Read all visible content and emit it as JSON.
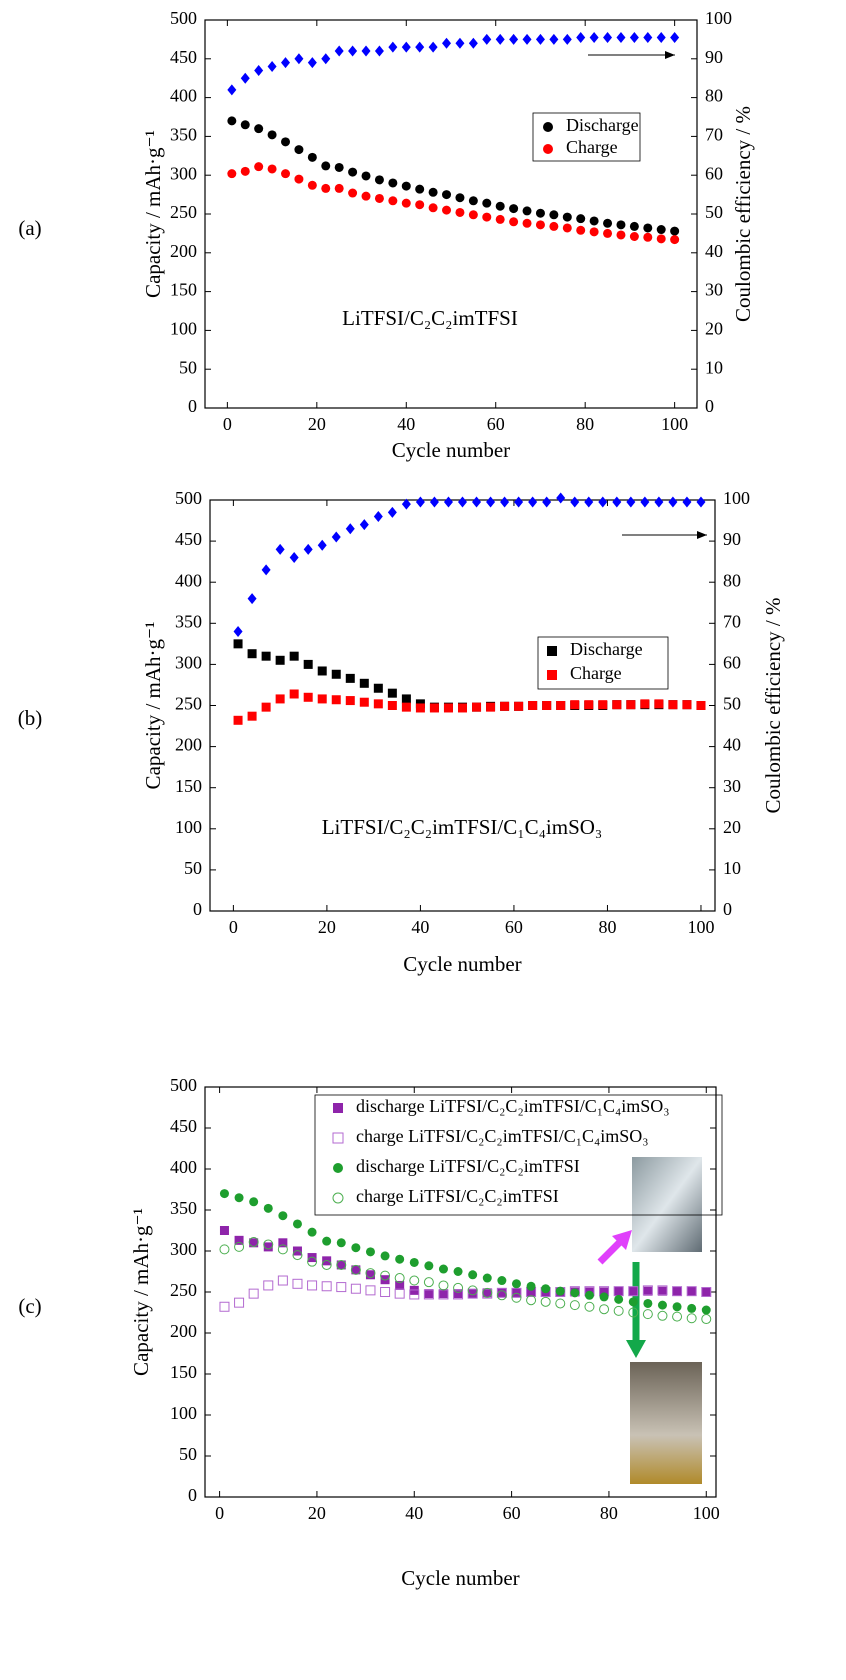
{
  "chart_data": [
    {
      "type": "scatter",
      "panel": "(a)",
      "annotation": "LiTFSI/C₂C₂imTFSI",
      "xlabel": "Cycle number",
      "ylabel": "Capacity / mAh·g⁻¹",
      "y2label": "Coulombic efficiency / %",
      "xlim": [
        -5,
        105
      ],
      "ylim": [
        0,
        500
      ],
      "y2lim": [
        0,
        100
      ],
      "xticks": [
        0,
        20,
        40,
        60,
        80,
        100
      ],
      "yticks": [
        0,
        50,
        100,
        150,
        200,
        250,
        300,
        350,
        400,
        450,
        500
      ],
      "y2ticks": [
        0,
        10,
        20,
        30,
        40,
        50,
        60,
        70,
        80,
        90,
        100
      ],
      "x": [
        1,
        4,
        7,
        10,
        13,
        16,
        19,
        22,
        25,
        28,
        31,
        34,
        37,
        40,
        43,
        46,
        49,
        52,
        55,
        58,
        61,
        64,
        67,
        70,
        73,
        76,
        79,
        82,
        85,
        88,
        91,
        94,
        97,
        100
      ],
      "series": [
        {
          "name": "Discharge",
          "color": "#000000",
          "marker": "circle",
          "filled": true,
          "values": [
            370,
            365,
            360,
            352,
            343,
            333,
            323,
            312,
            310,
            304,
            299,
            294,
            290,
            286,
            282,
            278,
            275,
            271,
            267,
            264,
            260,
            257,
            254,
            251,
            249,
            246,
            244,
            241,
            238,
            236,
            234,
            232,
            230,
            228
          ]
        },
        {
          "name": "Charge",
          "color": "#ff0000",
          "marker": "circle",
          "filled": true,
          "values": [
            302,
            305,
            311,
            308,
            302,
            295,
            287,
            283,
            283,
            277,
            273,
            270,
            267,
            264,
            262,
            258,
            255,
            252,
            249,
            246,
            243,
            240,
            238,
            236,
            234,
            232,
            229,
            227,
            225,
            223,
            221,
            220,
            218,
            217
          ]
        },
        {
          "color": "#0000ff",
          "marker": "diamond",
          "filled": true,
          "axis": "y2",
          "values": [
            82,
            85,
            87,
            88,
            89,
            90,
            89,
            90,
            92,
            92,
            92,
            92,
            93,
            93,
            93,
            93,
            94,
            94,
            94,
            95,
            95,
            95,
            95,
            95,
            95,
            95,
            95.5,
            95.5,
            95.5,
            95.5,
            95.5,
            95.5,
            95.5,
            95.5
          ]
        }
      ]
    },
    {
      "type": "scatter",
      "panel": "(b)",
      "annotation": "LiTFSI/C₂C₂imTFSI/C₁C₄imSO₃",
      "xlabel": "Cycle number",
      "ylabel": "Capacity / mAh·g⁻¹",
      "y2label": "Coulombic efficiency / %",
      "xlim": [
        -5,
        103
      ],
      "ylim": [
        0,
        500
      ],
      "y2lim": [
        0,
        100
      ],
      "xticks": [
        0,
        20,
        40,
        60,
        80,
        100
      ],
      "yticks": [
        0,
        50,
        100,
        150,
        200,
        250,
        300,
        350,
        400,
        450,
        500
      ],
      "y2ticks": [
        0,
        10,
        20,
        30,
        40,
        50,
        60,
        70,
        80,
        90,
        100
      ],
      "x": [
        1,
        4,
        7,
        10,
        13,
        16,
        19,
        22,
        25,
        28,
        31,
        34,
        37,
        40,
        43,
        46,
        49,
        52,
        55,
        58,
        61,
        64,
        67,
        70,
        73,
        76,
        79,
        82,
        85,
        88,
        91,
        94,
        97,
        100
      ],
      "series": [
        {
          "name": "Discharge",
          "color": "#000000",
          "marker": "square",
          "filled": true,
          "values": [
            325,
            313,
            310,
            305,
            310,
            300,
            292,
            288,
            283,
            277,
            271,
            265,
            258,
            252,
            248,
            248,
            248,
            248,
            249,
            249,
            249,
            250,
            250,
            250,
            250,
            250,
            250,
            251,
            251,
            251,
            251,
            251,
            251,
            250
          ]
        },
        {
          "name": "Charge",
          "color": "#ff0000",
          "marker": "square",
          "filled": true,
          "values": [
            232,
            237,
            248,
            258,
            264,
            260,
            258,
            257,
            256,
            254,
            252,
            250,
            248,
            247,
            247,
            247,
            247,
            248,
            248,
            249,
            249,
            250,
            250,
            250,
            251,
            251,
            251,
            251,
            251,
            252,
            252,
            251,
            251,
            250
          ]
        },
        {
          "color": "#0000ff",
          "marker": "diamond",
          "filled": true,
          "axis": "y2",
          "values": [
            68,
            76,
            83,
            88,
            86,
            88,
            89,
            91,
            93,
            94,
            96,
            97,
            99,
            99.5,
            99.5,
            99.5,
            99.5,
            99.5,
            99.5,
            99.5,
            99.5,
            99.5,
            99.5,
            100.5,
            99.5,
            99.5,
            99.5,
            99.5,
            99.5,
            99.5,
            99.5,
            99.5,
            99.5,
            99.5
          ]
        }
      ]
    },
    {
      "type": "scatter",
      "panel": "(c)",
      "xlabel": "Cycle number",
      "ylabel": "Capacity / mAh·g⁻¹",
      "xlim": [
        -3,
        102
      ],
      "ylim": [
        0,
        500
      ],
      "xticks": [
        0,
        20,
        40,
        60,
        80,
        100
      ],
      "yticks": [
        0,
        50,
        100,
        150,
        200,
        250,
        300,
        350,
        400,
        450,
        500
      ],
      "x": [
        1,
        4,
        7,
        10,
        13,
        16,
        19,
        22,
        25,
        28,
        31,
        34,
        37,
        40,
        43,
        46,
        49,
        52,
        55,
        58,
        61,
        64,
        67,
        70,
        73,
        76,
        79,
        82,
        85,
        88,
        91,
        94,
        97,
        100
      ],
      "series": [
        {
          "name": "discharge LiTFSI/C₂C₂imTFSI/C₁C₄imSO₃",
          "color": "#8e24aa",
          "marker": "square",
          "filled": true,
          "values": [
            325,
            313,
            310,
            305,
            310,
            300,
            292,
            288,
            283,
            277,
            271,
            265,
            258,
            252,
            248,
            248,
            248,
            248,
            249,
            249,
            249,
            250,
            250,
            250,
            250,
            250,
            250,
            251,
            251,
            251,
            251,
            251,
            251,
            250
          ]
        },
        {
          "name": "charge LiTFSI/C₂C₂imTFSI/C₁C₄imSO₃",
          "color": "#b36ad0",
          "marker": "square",
          "filled": false,
          "values": [
            232,
            237,
            248,
            258,
            264,
            260,
            258,
            257,
            256,
            254,
            252,
            250,
            248,
            247,
            247,
            247,
            247,
            248,
            248,
            249,
            249,
            250,
            250,
            250,
            251,
            251,
            251,
            251,
            251,
            252,
            252,
            251,
            251,
            250
          ]
        },
        {
          "name": "discharge LiTFSI/C₂C₂imTFSI",
          "color": "#1e9e2e",
          "marker": "circle",
          "filled": true,
          "values": [
            370,
            365,
            360,
            352,
            343,
            333,
            323,
            312,
            310,
            304,
            299,
            294,
            290,
            286,
            282,
            278,
            275,
            271,
            267,
            264,
            260,
            257,
            254,
            251,
            249,
            246,
            244,
            241,
            238,
            236,
            234,
            232,
            230,
            228
          ]
        },
        {
          "name": "charge LiTFSI/C₂C₂imTFSI",
          "color": "#4caf50",
          "marker": "circle",
          "filled": false,
          "values": [
            302,
            305,
            311,
            308,
            302,
            295,
            287,
            283,
            283,
            277,
            273,
            270,
            267,
            264,
            262,
            258,
            255,
            252,
            249,
            246,
            243,
            240,
            238,
            236,
            234,
            232,
            229,
            227,
            225,
            223,
            221,
            220,
            218,
            217
          ]
        }
      ]
    }
  ]
}
